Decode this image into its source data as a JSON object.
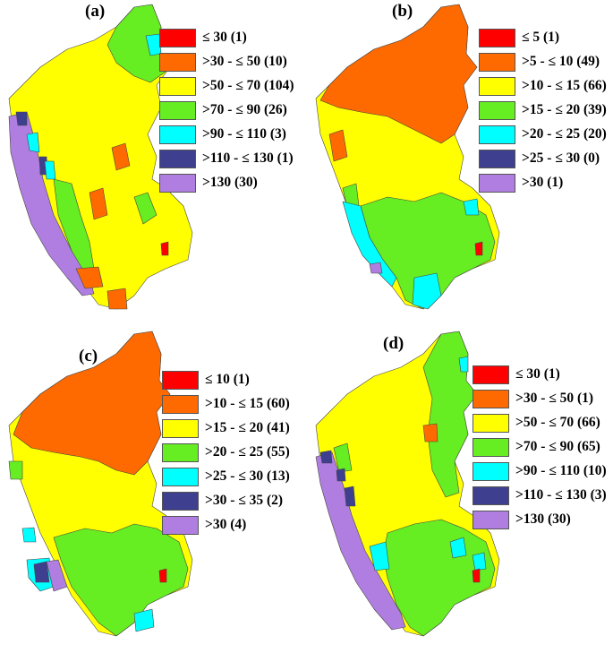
{
  "panels": [
    {
      "label": "(a)",
      "legend": [
        {
          "text": "≤ 30 (1)",
          "color": "#ff0000"
        },
        {
          "text": ">30 - ≤ 50 (10)",
          "color": "#ff6a00"
        },
        {
          "text": ">50 - ≤ 70 (104)",
          "color": "#ffff00"
        },
        {
          "text": ">70 - ≤ 90 (26)",
          "color": "#66ee22"
        },
        {
          "text": ">90 - ≤ 110 (3)",
          "color": "#00ffff"
        },
        {
          "text": ">110 - ≤ 130 (1)",
          "color": "#3f3f8f"
        },
        {
          "text": ">130 (30)",
          "color": "#b07ee0"
        }
      ]
    },
    {
      "label": "(b)",
      "legend": [
        {
          "text": "≤ 5 (1)",
          "color": "#ff0000"
        },
        {
          "text": ">5 - ≤ 10 (49)",
          "color": "#ff6a00"
        },
        {
          "text": ">10 - ≤ 15 (66)",
          "color": "#ffff00"
        },
        {
          "text": ">15 - ≤ 20 (39)",
          "color": "#66ee22"
        },
        {
          "text": ">20 - ≤ 25 (20)",
          "color": "#00ffff"
        },
        {
          "text": ">25 - ≤ 30 (0)",
          "color": "#3f3f8f"
        },
        {
          "text": ">30 (1)",
          "color": "#b07ee0"
        }
      ]
    },
    {
      "label": "(c)",
      "legend": [
        {
          "text": "≤ 10 (1)",
          "color": "#ff0000"
        },
        {
          "text": ">10 - ≤ 15 (60)",
          "color": "#ff6a00"
        },
        {
          "text": ">15 - ≤ 20 (41)",
          "color": "#ffff00"
        },
        {
          "text": ">20 - ≤ 25 (55)",
          "color": "#66ee22"
        },
        {
          "text": ">25 - ≤ 30 (13)",
          "color": "#00ffff"
        },
        {
          "text": ">30 - ≤ 35 (2)",
          "color": "#3f3f8f"
        },
        {
          "text": ">30 (4)",
          "color": "#b07ee0"
        }
      ]
    },
    {
      "label": "(d)",
      "legend": [
        {
          "text": "≤ 30 (1)",
          "color": "#ff0000"
        },
        {
          "text": ">30 - ≤ 50 (1)",
          "color": "#ff6a00"
        },
        {
          "text": ">50 - ≤ 70 (66)",
          "color": "#ffff00"
        },
        {
          "text": ">70 - ≤ 90 (65)",
          "color": "#66ee22"
        },
        {
          "text": ">90 - ≤ 110 (10)",
          "color": "#00ffff"
        },
        {
          "text": ">110 - ≤ 130 (3)",
          "color": "#3f3f8f"
        },
        {
          "text": ">130 (30)",
          "color": "#b07ee0"
        }
      ]
    }
  ]
}
